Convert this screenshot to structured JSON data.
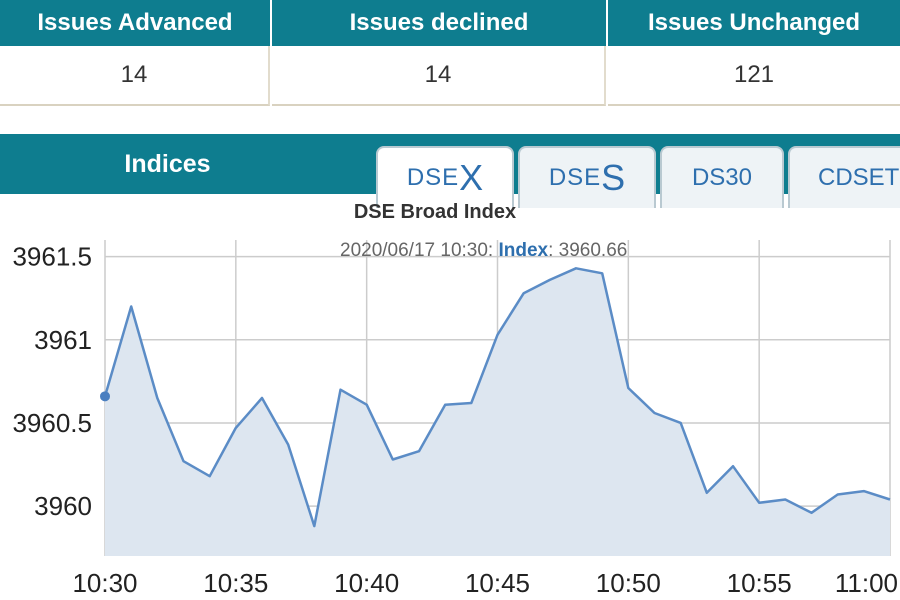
{
  "summary": {
    "headers": [
      "Issues Advanced",
      "Issues declined",
      "Issues Unchanged"
    ],
    "values": [
      "14",
      "14",
      "121"
    ]
  },
  "indices": {
    "label": "Indices",
    "tabs": [
      {
        "prefix": "DSE",
        "suffix": "X",
        "active": true
      },
      {
        "prefix": "DSE",
        "suffix": "S",
        "active": false
      },
      {
        "prefix": "DS30",
        "suffix": "",
        "active": false
      },
      {
        "prefix": "CDSET",
        "suffix": "",
        "active": false
      }
    ]
  },
  "tooltip": {
    "date": "2020/06/17 10:30:",
    "name": "Index",
    "value": ": 3960.66"
  },
  "chart_data": {
    "type": "area",
    "title": "DSE Broad Index",
    "xlabel": "",
    "ylabel": "",
    "x_ticks": [
      "10:30",
      "10:35",
      "10:40",
      "10:45",
      "10:50",
      "10:55",
      "11:00"
    ],
    "y_ticks": [
      3960,
      3960.5,
      3961,
      3961.5
    ],
    "xlim": [
      0,
      30
    ],
    "ylim": [
      3959.7,
      3961.6
    ],
    "grid": true,
    "colors": {
      "line": "#5b8cc6",
      "fill": "#dde6f0",
      "grid": "#cccccc",
      "marker": "#4a7fc0"
    },
    "series": [
      {
        "x": [
          0,
          1,
          2,
          3,
          4,
          5,
          6,
          7,
          8,
          9,
          10,
          11,
          12,
          13,
          14,
          15,
          16,
          17,
          18,
          19,
          20,
          21,
          22,
          23,
          24,
          25,
          26,
          27,
          28,
          29,
          30
        ],
        "values": [
          3960.66,
          3961.2,
          3960.65,
          3960.27,
          3960.18,
          3960.47,
          3960.65,
          3960.37,
          3959.88,
          3960.7,
          3960.61,
          3960.28,
          3960.33,
          3960.61,
          3960.62,
          3961.03,
          3961.28,
          3961.36,
          3961.43,
          3961.4,
          3960.71,
          3960.56,
          3960.5,
          3960.08,
          3960.24,
          3960.02,
          3960.04,
          3959.96,
          3960.07,
          3960.09,
          3960.04
        ]
      }
    ]
  }
}
